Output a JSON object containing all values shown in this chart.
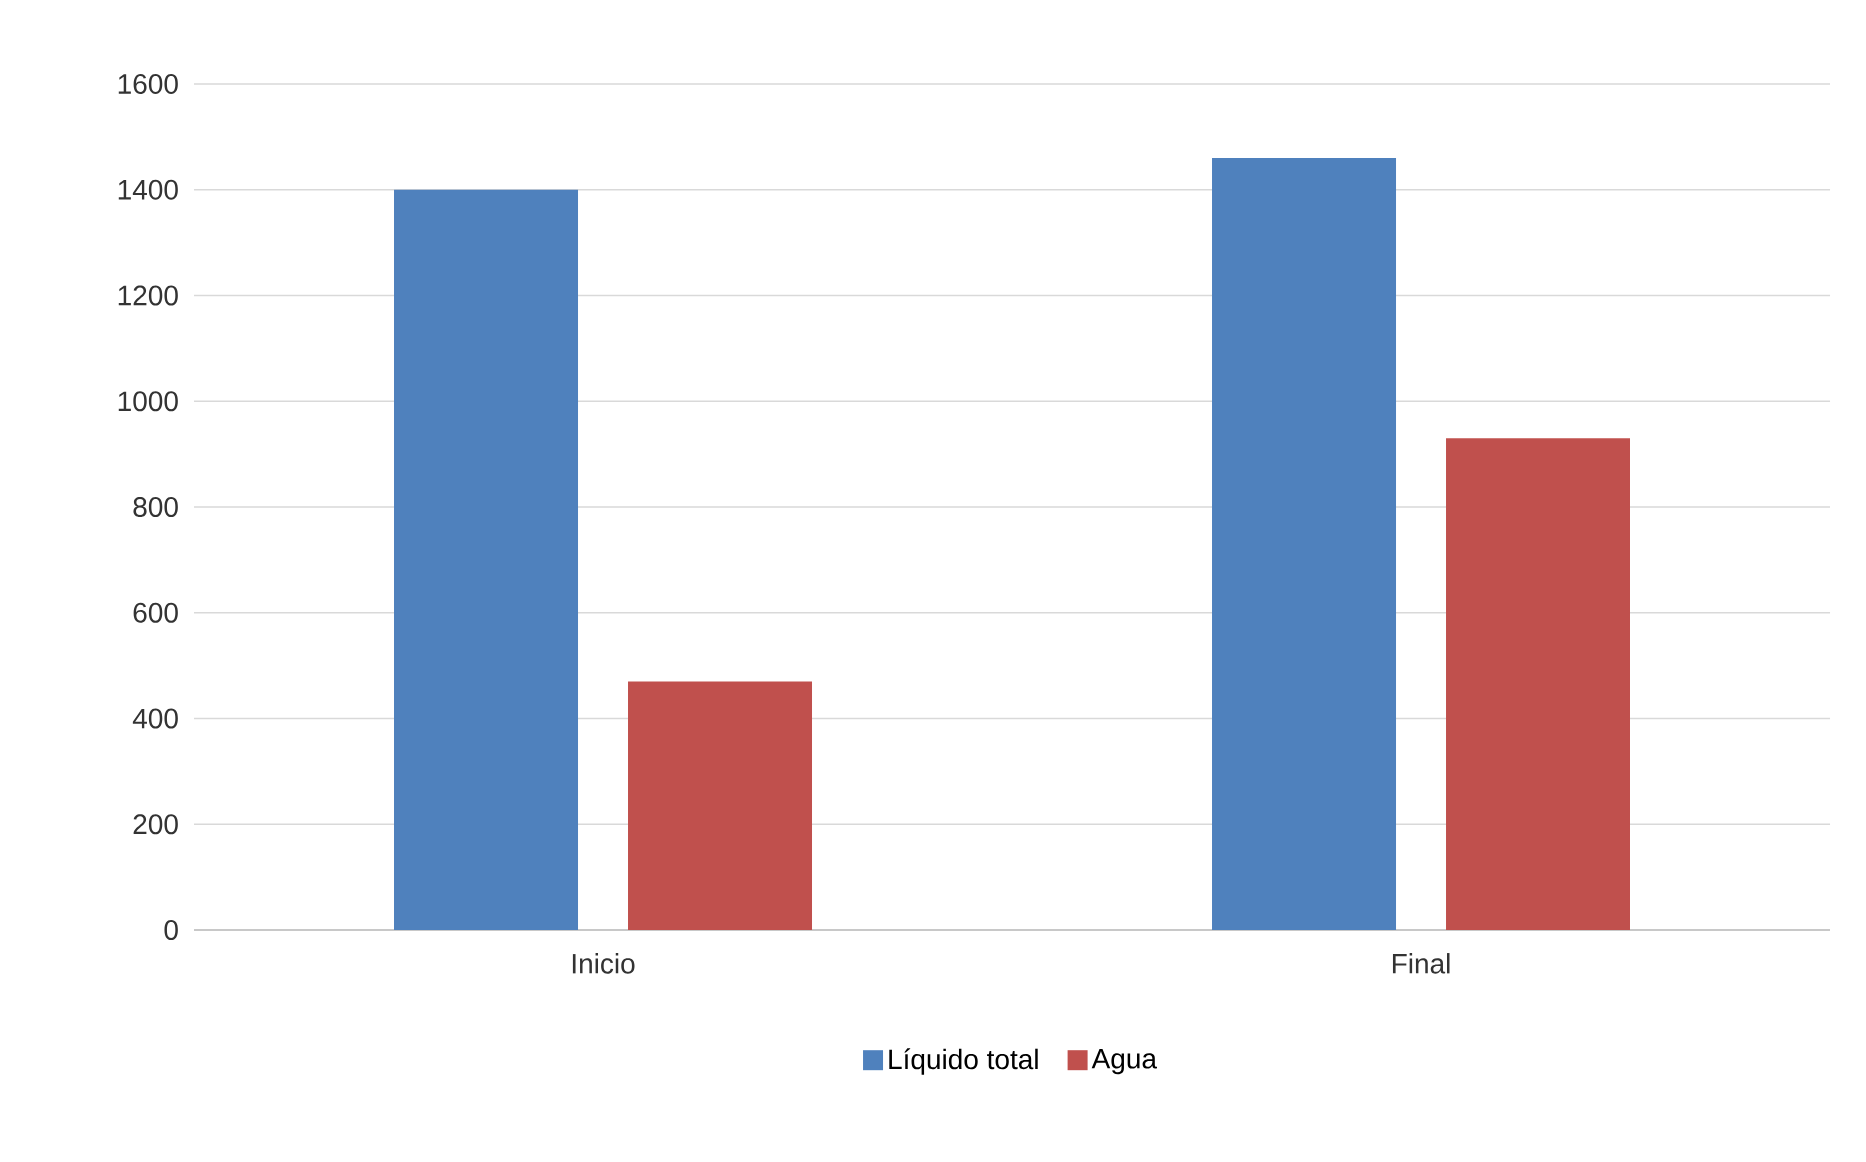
{
  "chart_data": {
    "type": "bar",
    "categories": [
      "Inicio",
      "Final"
    ],
    "series": [
      {
        "name": "Líquido total",
        "color": "#4f81bd",
        "values": [
          1400,
          1460
        ]
      },
      {
        "name": "Agua",
        "color": "#c0504d",
        "values": [
          470,
          930
        ]
      }
    ],
    "ylim": [
      0,
      1600
    ],
    "yticks": [
      0,
      200,
      400,
      600,
      800,
      1000,
      1200,
      1400,
      1600
    ],
    "grid": "y",
    "legend": "bottom"
  }
}
